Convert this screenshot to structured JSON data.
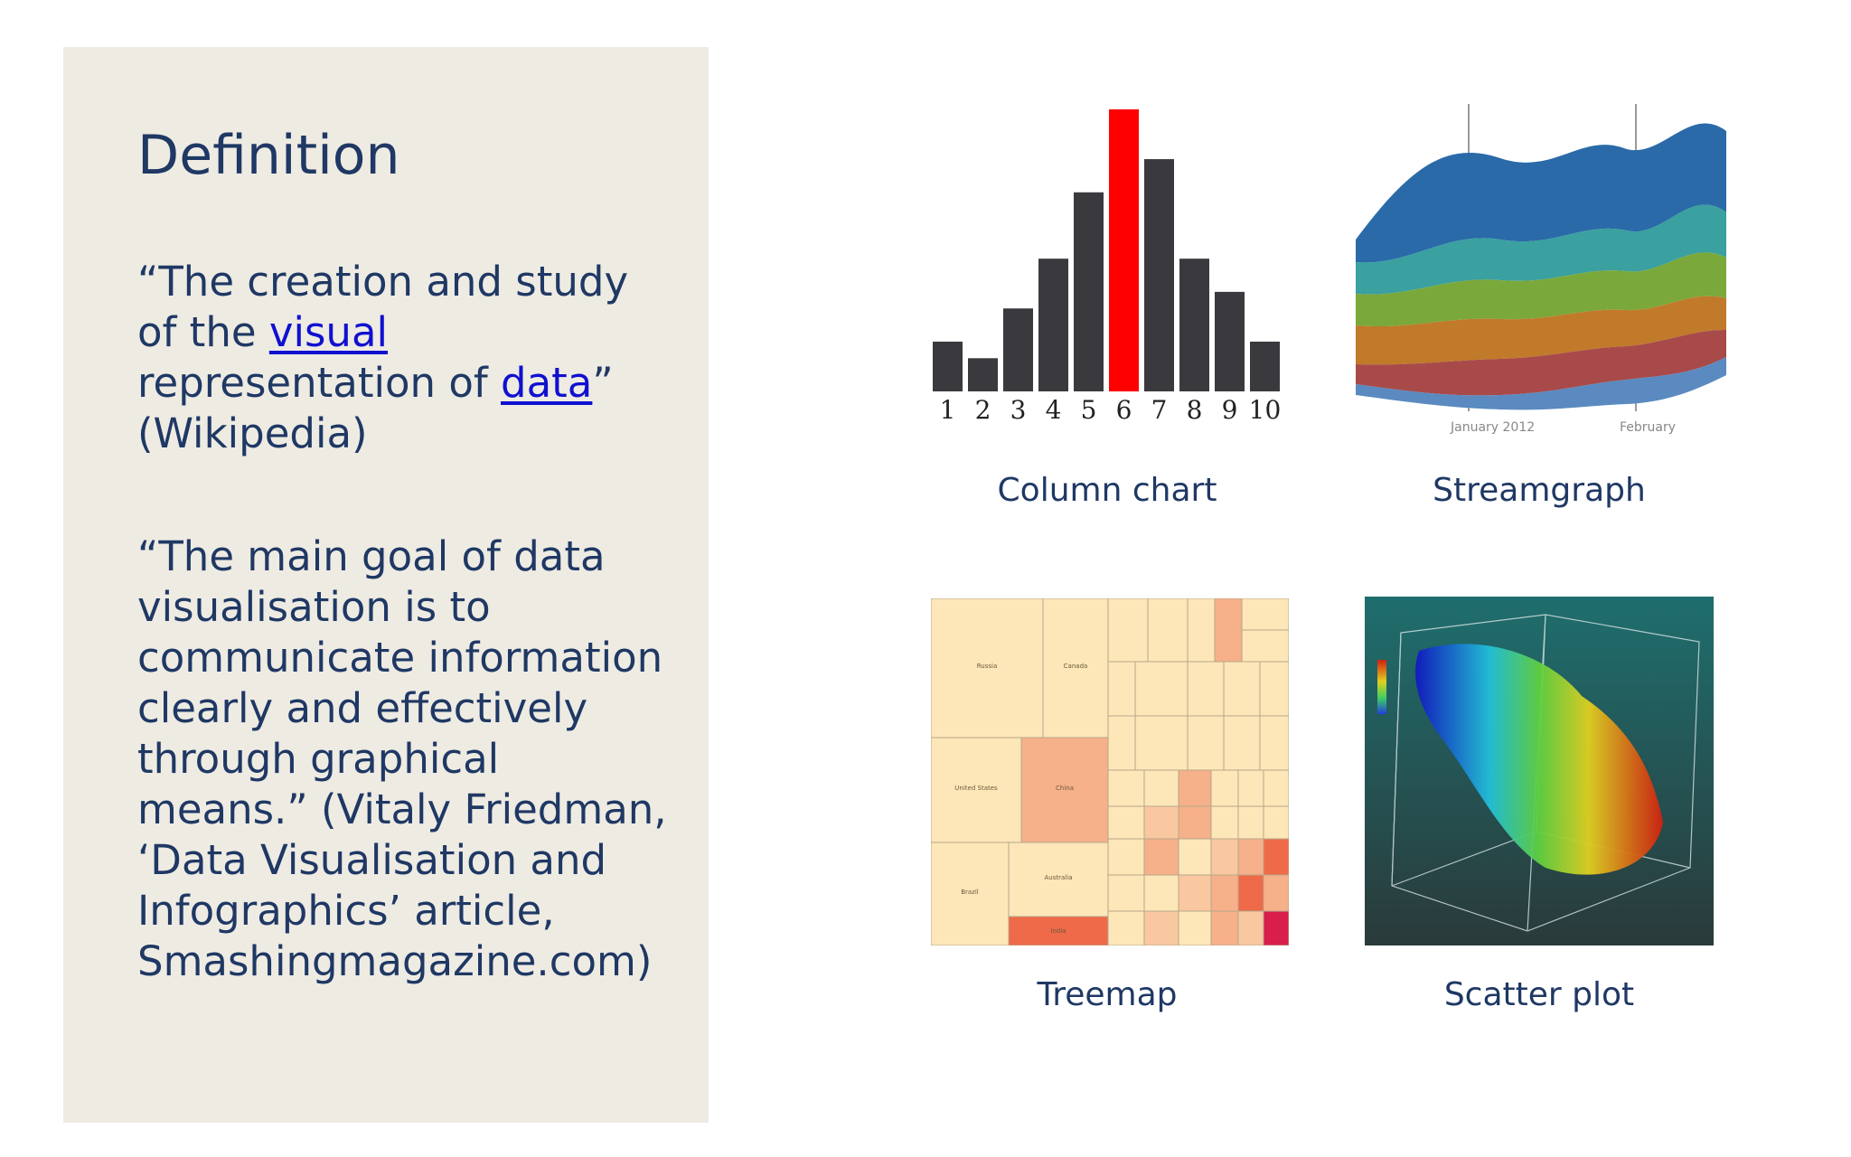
{
  "left": {
    "title": "Definition",
    "quote1": {
      "line1": "“The creation and study",
      "line2_pre": "of the ",
      "link1": "visual",
      "line3_pre": "representation of ",
      "link2": "data",
      "line3_post": "”",
      "line4": "(Wikipedia)"
    },
    "quote2": {
      "lines": [
        "“The main goal of data",
        "visualisation is to",
        "communicate information",
        "clearly and effectively",
        "through graphical",
        "means.” (Vitaly Friedman,",
        "‘Data Visualisation and",
        "Infographics’ article,",
        "Smashingmagazine.com)"
      ]
    }
  },
  "figures": {
    "column_caption": "Column chart",
    "stream_caption": "Streamgraph",
    "treemap_caption": "Treemap",
    "scatter_caption": "Scatter plot",
    "stream_ticks": [
      "January 2012",
      "February"
    ],
    "treemap_labels": [
      "Russia",
      "Canada",
      "United States",
      "China",
      "Brazil",
      "Australia",
      "India"
    ]
  },
  "chart_data": {
    "type": "bar",
    "categories": [
      "1",
      "2",
      "3",
      "4",
      "5",
      "6",
      "7",
      "8",
      "9",
      "10"
    ],
    "values": [
      15,
      10,
      25,
      40,
      60,
      85,
      70,
      40,
      30,
      15
    ],
    "highlight_index": 5,
    "colors": {
      "bar": "#3a3a3e",
      "highlight": "#ff0000"
    },
    "ylim": [
      0,
      85
    ]
  }
}
